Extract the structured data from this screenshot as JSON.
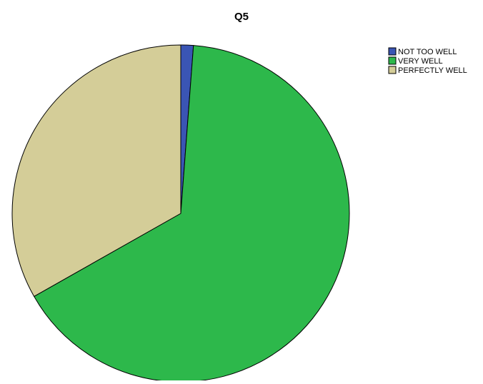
{
  "chart_data": {
    "type": "pie",
    "title": "Q5",
    "legend_position": "top-right",
    "categories": [
      "NOT TOO WELL",
      "VERY WELL",
      "PERFECTLY WELL"
    ],
    "values": [
      1.2,
      65.6,
      33.2
    ],
    "colors": [
      "#3a55b4",
      "#2db84b",
      "#d4cd98"
    ],
    "start_angle_deg": 0,
    "direction": "clockwise"
  }
}
